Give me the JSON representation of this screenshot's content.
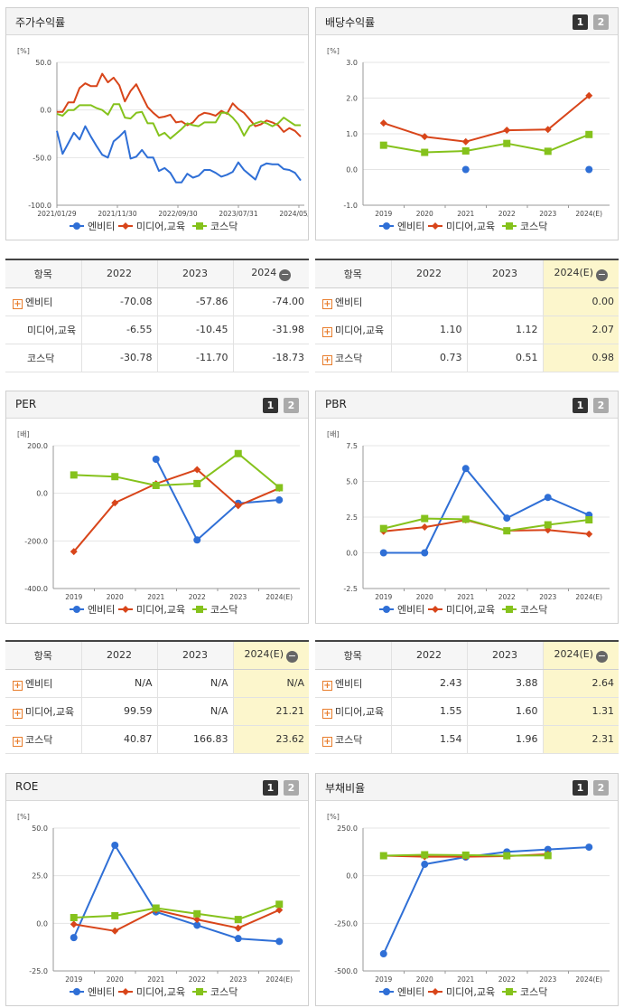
{
  "legend": [
    {
      "name": "엔비티",
      "color": "#2f6fd6",
      "marker": "circle"
    },
    {
      "name": "미디어,교육",
      "color": "#d8451a",
      "marker": "diamond"
    },
    {
      "name": "코스닥",
      "color": "#85c21c",
      "marker": "square"
    }
  ],
  "charts": [
    {
      "title": "주가수익률",
      "unit": "[%]",
      "buttons": [],
      "chart_data": {
        "type": "line",
        "ylim": [
          -100,
          50
        ],
        "yticks": [
          "50.0",
          "0.0",
          "-50.0",
          "-100.0"
        ],
        "xticks": [
          "2021/01/29",
          "2021/11/30",
          "2022/09/30",
          "2023/07/31",
          "2024/05/31"
        ],
        "series": [
          {
            "name": "엔비티",
            "values": [
              -22,
              -46,
              -35,
              -24,
              -31,
              -17,
              -28,
              -38,
              -47,
              -50,
              -33,
              -28,
              -22,
              -51,
              -49,
              -42,
              -50,
              -50,
              -64,
              -61,
              -66,
              -76,
              -76,
              -67,
              -71,
              -69,
              -63,
              -63,
              -66,
              -70,
              -68,
              -65,
              -55,
              -63,
              -68,
              -73,
              -59,
              -56,
              -57,
              -57,
              -62,
              -63,
              -66,
              -74
            ]
          },
          {
            "name": "미디어,교육",
            "values": [
              -2,
              -2,
              8,
              8,
              23,
              28,
              25,
              25,
              38,
              29,
              34,
              26,
              9,
              20,
              27,
              15,
              3,
              -3,
              -8,
              -7,
              -5,
              -13,
              -12,
              -16,
              -13,
              -6,
              -3,
              -4,
              -6,
              -1,
              -4,
              7,
              1,
              -3,
              -10,
              -17,
              -15,
              -11,
              -13,
              -16,
              -23,
              -19,
              -22,
              -28
            ]
          },
          {
            "name": "코스닥",
            "values": [
              -4,
              -6,
              0,
              0,
              5,
              5,
              5,
              2,
              0,
              -5,
              6,
              6,
              -8,
              -9,
              -3,
              -2,
              -14,
              -14,
              -27,
              -24,
              -30,
              -25,
              -20,
              -14,
              -16,
              -17,
              -13,
              -13,
              -13,
              -3,
              -3,
              -8,
              -15,
              -27,
              -17,
              -14,
              -12,
              -14,
              -17,
              -14,
              -8,
              -12,
              -16,
              -16
            ]
          }
        ]
      }
    },
    {
      "title": "배당수익률",
      "unit": "[%]",
      "buttons": [
        "1",
        "2"
      ],
      "chart_data": {
        "type": "line",
        "ylim": [
          -1,
          3
        ],
        "yticks": [
          "3.0",
          "2.0",
          "1.0",
          "0.0",
          "-1.0"
        ],
        "categories": [
          "2019",
          "2020",
          "2021",
          "2022",
          "2023",
          "2024(E)"
        ],
        "series": [
          {
            "name": "엔비티",
            "values": [
              null,
              null,
              0.0,
              null,
              null,
              0.0
            ]
          },
          {
            "name": "미디어,교육",
            "values": [
              1.3,
              0.92,
              0.78,
              1.1,
              1.12,
              2.07
            ]
          },
          {
            "name": "코스닥",
            "values": [
              0.68,
              0.48,
              0.52,
              0.73,
              0.51,
              0.98
            ]
          }
        ]
      }
    },
    {
      "title": "PER",
      "unit": "[배]",
      "buttons": [
        "1",
        "2"
      ],
      "chart_data": {
        "type": "line",
        "ylim": [
          -400,
          200
        ],
        "yticks": [
          "200.0",
          "0.0",
          "-200.0",
          "-400.0"
        ],
        "categories": [
          "2019",
          "2020",
          "2021",
          "2022",
          "2023",
          "2024(E)"
        ],
        "series": [
          {
            "name": "엔비티",
            "values": [
              null,
              null,
              143,
              -196,
              -42,
              -28
            ]
          },
          {
            "name": "미디어,교육",
            "values": [
              -245,
              -40,
              40,
              99.59,
              -52,
              21.21
            ]
          },
          {
            "name": "코스닥",
            "values": [
              77,
              70,
              33,
              40.87,
              166.83,
              23.62
            ]
          }
        ]
      }
    },
    {
      "title": "PBR",
      "unit": "[배]",
      "buttons": [
        "1",
        "2"
      ],
      "chart_data": {
        "type": "line",
        "ylim": [
          -2.5,
          7.5
        ],
        "yticks": [
          "7.5",
          "5.0",
          "2.5",
          "0.0",
          "-2.5"
        ],
        "categories": [
          "2019",
          "2020",
          "2021",
          "2022",
          "2023",
          "2024(E)"
        ],
        "series": [
          {
            "name": "엔비티",
            "values": [
              0.0,
              0.0,
              5.9,
              2.43,
              3.88,
              2.64
            ]
          },
          {
            "name": "미디어,교육",
            "values": [
              1.5,
              1.8,
              2.3,
              1.55,
              1.6,
              1.31
            ]
          },
          {
            "name": "코스닥",
            "values": [
              1.7,
              2.4,
              2.35,
              1.54,
              1.96,
              2.31
            ]
          }
        ]
      }
    },
    {
      "title": "ROE",
      "unit": "[%]",
      "buttons": [
        "1",
        "2"
      ],
      "chart_data": {
        "type": "line",
        "ylim": [
          -25,
          50
        ],
        "yticks": [
          "50.0",
          "25.0",
          "0.0",
          "-25.0"
        ],
        "categories": [
          "2019",
          "2020",
          "2021",
          "2022",
          "2023",
          "2024(E)"
        ],
        "series": [
          {
            "name": "엔비티",
            "values": [
              -7.5,
              41,
              6,
              -1,
              -8,
              -9.5
            ]
          },
          {
            "name": "미디어,교육",
            "values": [
              -0.5,
              -4,
              7,
              2,
              -2.5,
              7
            ]
          },
          {
            "name": "코스닥",
            "values": [
              3,
              4,
              8,
              5,
              2,
              10
            ]
          }
        ]
      }
    },
    {
      "title": "부채비율",
      "unit": "[%]",
      "buttons": [
        "1",
        "2"
      ],
      "chart_data": {
        "type": "line",
        "ylim": [
          -500,
          250
        ],
        "yticks": [
          "250.0",
          "0.0",
          "-250.0",
          "-500.0"
        ],
        "categories": [
          "2019",
          "2020",
          "2021",
          "2022",
          "2023",
          "2024(E)"
        ],
        "series": [
          {
            "name": "엔비티",
            "values": [
              -410,
              60,
              98,
              125,
              138,
              150
            ]
          },
          {
            "name": "미디어,교육",
            "values": [
              105,
              100,
              100,
              103,
              113,
              null
            ]
          },
          {
            "name": "코스닥",
            "values": [
              105,
              110,
              108,
              105,
              106,
              null
            ]
          }
        ]
      }
    }
  ],
  "tables": [
    {
      "head": [
        "항목",
        "2022",
        "2023",
        "2024"
      ],
      "collapse": "−",
      "hlcol": -1,
      "rows": [
        {
          "plus": true,
          "name": "엔비티",
          "v": [
            "-70.08",
            "-57.86",
            "-74.00"
          ]
        },
        {
          "plus": false,
          "name": "미디어,교육",
          "v": [
            "-6.55",
            "-10.45",
            "-31.98"
          ]
        },
        {
          "plus": false,
          "name": "코스닥",
          "v": [
            "-30.78",
            "-11.70",
            "-18.73"
          ]
        }
      ]
    },
    {
      "head": [
        "항목",
        "2022",
        "2023",
        "2024(E)"
      ],
      "collapse": "−",
      "hlcol": 3,
      "rows": [
        {
          "plus": true,
          "name": "엔비티",
          "v": [
            "",
            "",
            "0.00"
          ]
        },
        {
          "plus": true,
          "name": "미디어,교육",
          "v": [
            "1.10",
            "1.12",
            "2.07"
          ]
        },
        {
          "plus": true,
          "name": "코스닥",
          "v": [
            "0.73",
            "0.51",
            "0.98"
          ]
        }
      ]
    },
    {
      "head": [
        "항목",
        "2022",
        "2023",
        "2024(E)"
      ],
      "collapse": "−",
      "hlcol": 3,
      "rows": [
        {
          "plus": true,
          "name": "엔비티",
          "v": [
            "N/A",
            "N/A",
            "N/A"
          ]
        },
        {
          "plus": true,
          "name": "미디어,교육",
          "v": [
            "99.59",
            "N/A",
            "21.21"
          ]
        },
        {
          "plus": true,
          "name": "코스닥",
          "v": [
            "40.87",
            "166.83",
            "23.62"
          ]
        }
      ]
    },
    {
      "head": [
        "항목",
        "2022",
        "2023",
        "2024(E)"
      ],
      "collapse": "−",
      "hlcol": 3,
      "rows": [
        {
          "plus": true,
          "name": "엔비티",
          "v": [
            "2.43",
            "3.88",
            "2.64"
          ]
        },
        {
          "plus": true,
          "name": "미디어,교육",
          "v": [
            "1.55",
            "1.60",
            "1.31"
          ]
        },
        {
          "plus": true,
          "name": "코스닥",
          "v": [
            "1.54",
            "1.96",
            "2.31"
          ]
        }
      ]
    }
  ]
}
